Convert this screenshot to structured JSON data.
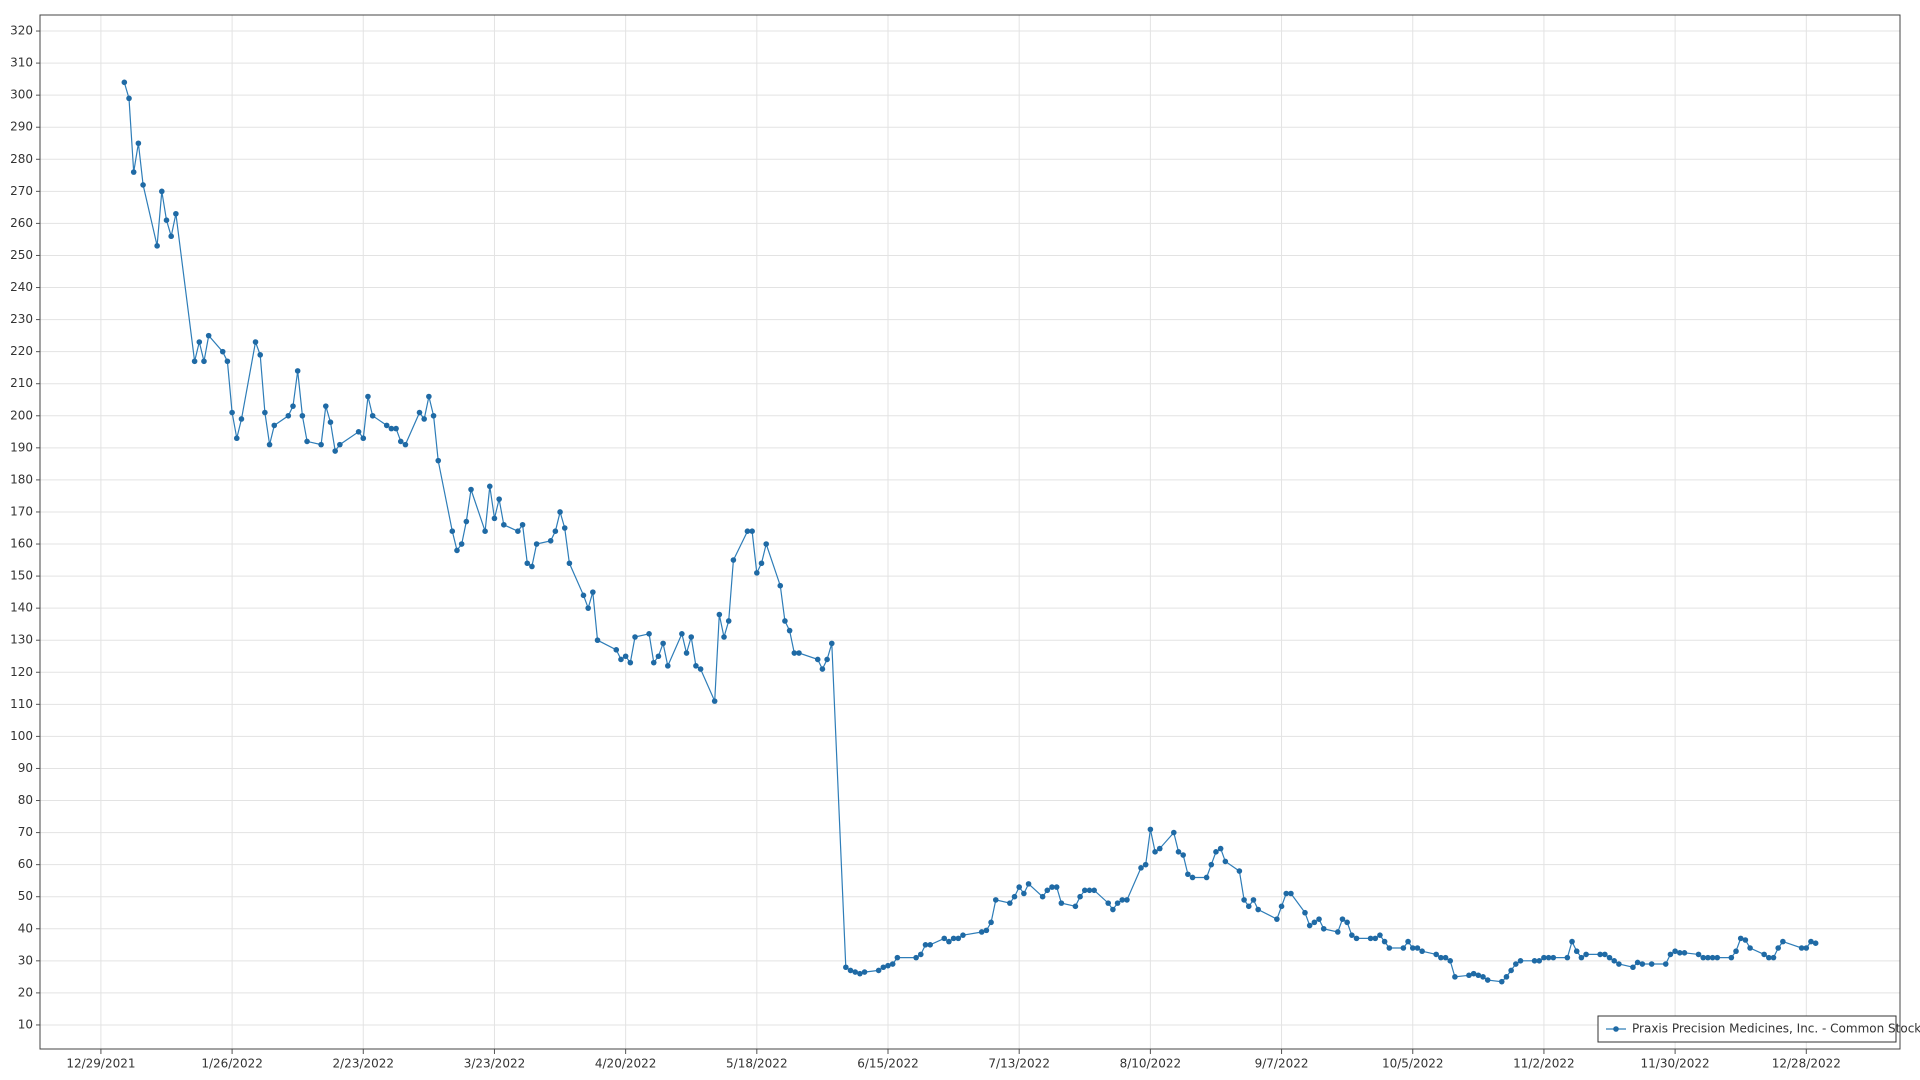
{
  "chart_data": {
    "type": "line",
    "xlim": [
      "12/16/2021",
      "1/17/2023"
    ],
    "xticks": [
      "12/29/2021",
      "1/26/2022",
      "2/23/2022",
      "3/23/2022",
      "4/20/2022",
      "5/18/2022",
      "6/15/2022",
      "7/13/2022",
      "8/10/2022",
      "9/7/2022",
      "10/5/2022",
      "11/2/2022",
      "11/30/2022",
      "12/28/2022"
    ],
    "ylim": [
      2.5,
      325
    ],
    "yticks": [
      10,
      20,
      30,
      40,
      50,
      60,
      70,
      80,
      90,
      100,
      110,
      120,
      130,
      140,
      150,
      160,
      170,
      180,
      190,
      200,
      210,
      220,
      230,
      240,
      250,
      260,
      270,
      280,
      290,
      300,
      310,
      320
    ],
    "grid": true,
    "legend": "lower right",
    "series": [
      {
        "name": "Praxis Precision Medicines, Inc. - Common Stock",
        "color": "#2e7db8",
        "x": [
          "1/3/2022",
          "1/4/2022",
          "1/5/2022",
          "1/6/2022",
          "1/7/2022",
          "1/10/2022",
          "1/11/2022",
          "1/12/2022",
          "1/13/2022",
          "1/14/2022",
          "1/18/2022",
          "1/19/2022",
          "1/20/2022",
          "1/21/2022",
          "1/24/2022",
          "1/25/2022",
          "1/26/2022",
          "1/27/2022",
          "1/28/2022",
          "1/31/2022",
          "2/1/2022",
          "2/2/2022",
          "2/3/2022",
          "2/4/2022",
          "2/7/2022",
          "2/8/2022",
          "2/9/2022",
          "2/10/2022",
          "2/11/2022",
          "2/14/2022",
          "2/15/2022",
          "2/16/2022",
          "2/17/2022",
          "2/18/2022",
          "2/22/2022",
          "2/23/2022",
          "2/24/2022",
          "2/25/2022",
          "2/28/2022",
          "3/1/2022",
          "3/2/2022",
          "3/3/2022",
          "3/4/2022",
          "3/7/2022",
          "3/8/2022",
          "3/9/2022",
          "3/10/2022",
          "3/11/2022",
          "3/14/2022",
          "3/15/2022",
          "3/16/2022",
          "3/17/2022",
          "3/18/2022",
          "3/21/2022",
          "3/22/2022",
          "3/23/2022",
          "3/24/2022",
          "3/25/2022",
          "3/28/2022",
          "3/29/2022",
          "3/30/2022",
          "3/31/2022",
          "4/1/2022",
          "4/4/2022",
          "4/5/2022",
          "4/6/2022",
          "4/7/2022",
          "4/8/2022",
          "4/11/2022",
          "4/12/2022",
          "4/13/2022",
          "4/14/2022",
          "4/18/2022",
          "4/19/2022",
          "4/20/2022",
          "4/21/2022",
          "4/22/2022",
          "4/25/2022",
          "4/26/2022",
          "4/27/2022",
          "4/28/2022",
          "4/29/2022",
          "5/2/2022",
          "5/3/2022",
          "5/4/2022",
          "5/5/2022",
          "5/6/2022",
          "5/9/2022",
          "5/10/2022",
          "5/11/2022",
          "5/12/2022",
          "5/13/2022",
          "5/16/2022",
          "5/17/2022",
          "5/18/2022",
          "5/19/2022",
          "5/20/2022",
          "5/23/2022",
          "5/24/2022",
          "5/25/2022",
          "5/26/2022",
          "5/27/2022",
          "5/31/2022",
          "6/1/2022",
          "6/2/2022",
          "6/3/2022",
          "6/6/2022",
          "6/7/2022",
          "6/8/2022",
          "6/9/2022",
          "6/10/2022",
          "6/13/2022",
          "6/14/2022",
          "6/15/2022",
          "6/16/2022",
          "6/17/2022",
          "6/21/2022",
          "6/22/2022",
          "6/23/2022",
          "6/24/2022",
          "6/27/2022",
          "6/28/2022",
          "6/29/2022",
          "6/30/2022",
          "7/1/2022",
          "7/5/2022",
          "7/6/2022",
          "7/7/2022",
          "7/8/2022",
          "7/11/2022",
          "7/12/2022",
          "7/13/2022",
          "7/14/2022",
          "7/15/2022",
          "7/18/2022",
          "7/19/2022",
          "7/20/2022",
          "7/21/2022",
          "7/22/2022",
          "7/25/2022",
          "7/26/2022",
          "7/27/2022",
          "7/28/2022",
          "7/29/2022",
          "8/1/2022",
          "8/2/2022",
          "8/3/2022",
          "8/4/2022",
          "8/5/2022",
          "8/8/2022",
          "8/9/2022",
          "8/10/2022",
          "8/11/2022",
          "8/12/2022",
          "8/15/2022",
          "8/16/2022",
          "8/17/2022",
          "8/18/2022",
          "8/19/2022",
          "8/22/2022",
          "8/23/2022",
          "8/24/2022",
          "8/25/2022",
          "8/26/2022",
          "8/29/2022",
          "8/30/2022",
          "8/31/2022",
          "9/1/2022",
          "9/2/2022",
          "9/6/2022",
          "9/7/2022",
          "9/8/2022",
          "9/9/2022",
          "9/12/2022",
          "9/13/2022",
          "9/14/2022",
          "9/15/2022",
          "9/16/2022",
          "9/19/2022",
          "9/20/2022",
          "9/21/2022",
          "9/22/2022",
          "9/23/2022",
          "9/26/2022",
          "9/27/2022",
          "9/28/2022",
          "9/29/2022",
          "9/30/2022",
          "10/3/2022",
          "10/4/2022",
          "10/5/2022",
          "10/6/2022",
          "10/7/2022",
          "10/10/2022",
          "10/11/2022",
          "10/12/2022",
          "10/13/2022",
          "10/14/2022",
          "10/17/2022",
          "10/18/2022",
          "10/19/2022",
          "10/20/2022",
          "10/21/2022",
          "10/24/2022",
          "10/25/2022",
          "10/26/2022",
          "10/27/2022",
          "10/28/2022",
          "10/31/2022",
          "11/1/2022",
          "11/2/2022",
          "11/3/2022",
          "11/4/2022",
          "11/7/2022",
          "11/8/2022",
          "11/9/2022",
          "11/10/2022",
          "11/11/2022",
          "11/14/2022",
          "11/15/2022",
          "11/16/2022",
          "11/17/2022",
          "11/18/2022",
          "11/21/2022",
          "11/22/2022",
          "11/23/2022",
          "11/25/2022",
          "11/28/2022",
          "11/29/2022",
          "11/30/2022",
          "12/1/2022",
          "12/2/2022",
          "12/5/2022",
          "12/6/2022",
          "12/7/2022",
          "12/8/2022",
          "12/9/2022",
          "12/12/2022",
          "12/13/2022",
          "12/14/2022",
          "12/15/2022",
          "12/16/2022",
          "12/19/2022",
          "12/20/2022",
          "12/21/2022",
          "12/22/2022",
          "12/23/2022",
          "12/27/2022",
          "12/28/2022",
          "12/29/2022",
          "12/30/2022"
        ],
        "values": [
          304,
          299,
          276,
          285,
          272,
          253,
          270,
          261,
          256,
          263,
          217,
          223,
          217,
          225,
          220,
          217,
          201,
          193,
          199,
          223,
          219,
          201,
          191,
          197,
          200,
          203,
          214,
          200,
          192,
          191,
          203,
          198,
          189,
          191,
          195,
          193,
          206,
          200,
          197,
          196,
          196,
          192,
          191,
          201,
          199,
          206,
          200,
          186,
          164,
          158,
          160,
          167,
          177,
          164,
          178,
          168,
          174,
          166,
          164,
          166,
          154,
          153,
          160,
          161,
          164,
          170,
          165,
          154,
          144,
          140,
          145,
          130,
          127,
          124,
          125,
          123,
          131,
          132,
          123,
          125,
          129,
          122,
          132,
          126,
          131,
          122,
          121,
          111,
          138,
          131,
          136,
          155,
          164,
          164,
          151,
          154,
          160,
          147,
          136,
          133,
          126,
          126,
          124,
          121,
          124,
          129,
          28,
          27,
          26.5,
          26,
          26.5,
          27,
          28,
          28.5,
          29,
          31,
          31,
          32,
          35,
          35,
          37,
          36,
          37,
          37,
          38,
          39,
          39.5,
          42,
          49,
          48,
          50,
          53,
          51,
          54,
          50,
          52,
          53,
          53,
          48,
          47,
          50,
          52,
          52,
          52,
          48,
          46,
          48,
          49,
          49,
          59,
          60,
          71,
          64,
          65,
          70,
          64,
          63,
          57,
          56,
          56,
          60,
          64,
          65,
          61,
          58,
          49,
          47,
          49,
          46,
          43,
          47,
          51,
          51,
          45,
          41,
          42,
          43,
          40,
          39,
          43,
          42,
          38,
          37,
          37,
          37,
          38,
          36,
          34,
          34,
          36,
          34,
          34,
          33,
          32,
          31,
          31,
          30,
          25,
          25.5,
          26,
          25.5,
          25,
          24,
          23.5,
          25,
          27,
          29,
          30,
          30,
          30,
          31,
          31,
          31,
          31,
          36,
          33,
          31,
          32,
          32,
          32,
          31,
          30,
          29,
          28,
          29.5,
          29,
          29,
          29,
          32,
          33,
          32.5,
          32.5,
          32,
          31,
          31,
          31,
          31,
          31,
          33,
          37,
          36.5,
          34,
          32,
          31,
          31,
          34,
          36,
          34,
          34,
          36,
          35.5
        ]
      }
    ]
  }
}
